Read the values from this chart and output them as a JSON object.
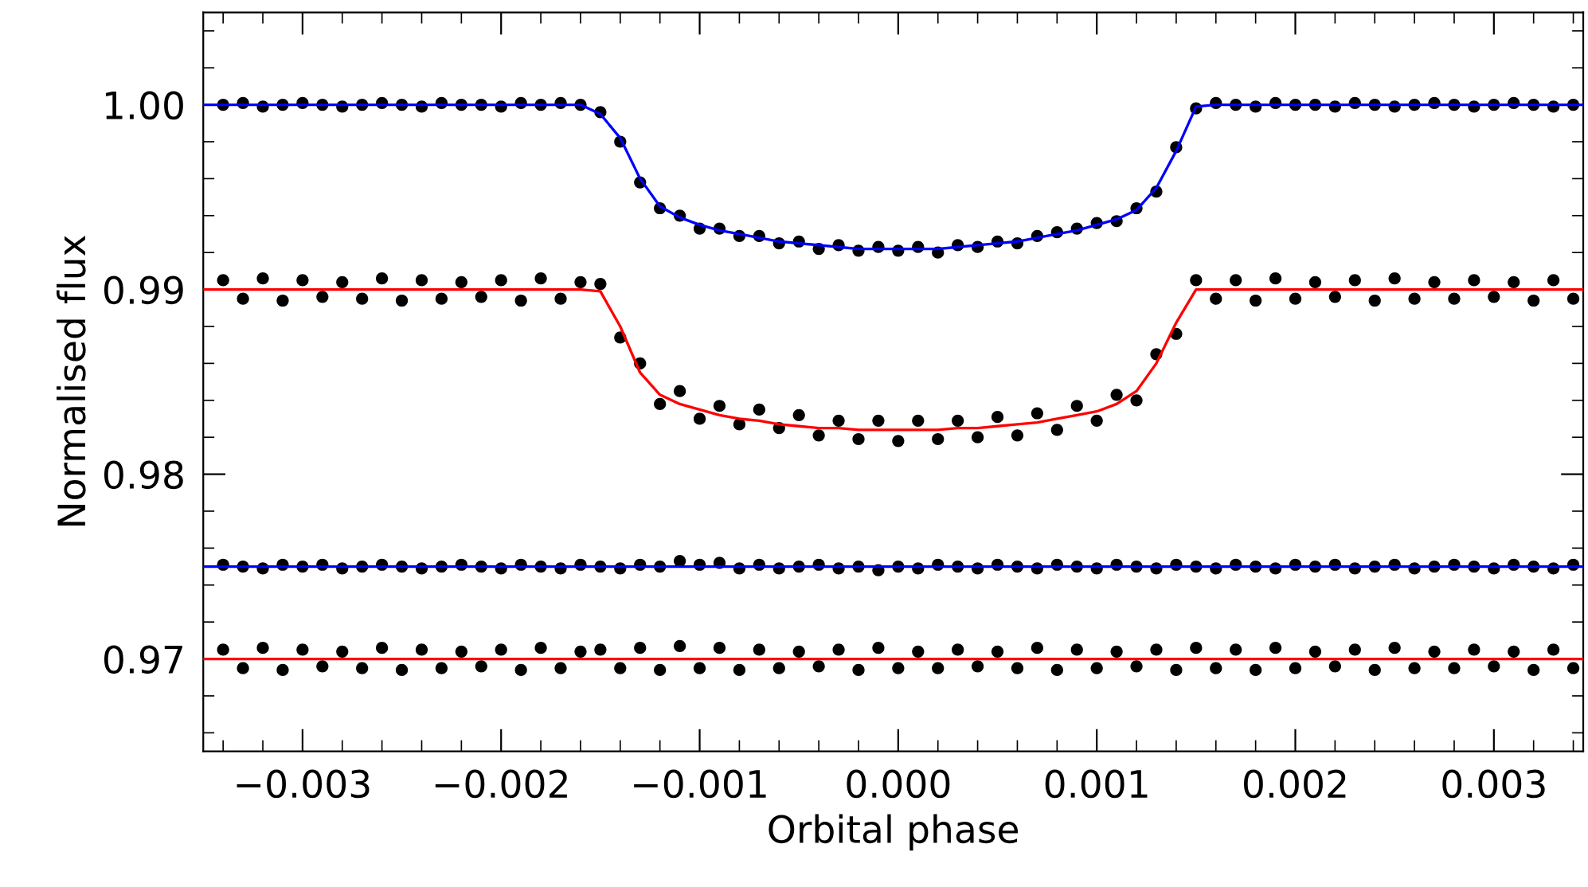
{
  "chart_data": {
    "type": "scatter",
    "xlabel": "Orbital phase",
    "ylabel": "Normalised flux",
    "xlim": [
      -0.0035,
      0.00345
    ],
    "ylim": [
      0.965,
      1.005
    ],
    "xticks": [
      {
        "value": -0.003,
        "label": "−0.003"
      },
      {
        "value": -0.002,
        "label": "−0.002"
      },
      {
        "value": -0.001,
        "label": "−0.001"
      },
      {
        "value": 0.0,
        "label": "0.000"
      },
      {
        "value": 0.001,
        "label": "0.001"
      },
      {
        "value": 0.002,
        "label": "0.002"
      },
      {
        "value": 0.003,
        "label": "0.003"
      }
    ],
    "yticks": [
      {
        "value": 0.97,
        "label": "0.97"
      },
      {
        "value": 0.98,
        "label": "0.98"
      },
      {
        "value": 0.99,
        "label": "0.99"
      },
      {
        "value": 1.0,
        "label": "1.00"
      }
    ],
    "grid": false,
    "legend": false,
    "marker": "circle",
    "x": [
      -0.0034,
      -0.0033,
      -0.0032,
      -0.0031,
      -0.003,
      -0.0029,
      -0.0028,
      -0.0027,
      -0.0026,
      -0.0025,
      -0.0024,
      -0.0023,
      -0.0022,
      -0.0021,
      -0.002,
      -0.0019,
      -0.0018,
      -0.0017,
      -0.0016,
      -0.0015,
      -0.0014,
      -0.0013,
      -0.0012,
      -0.0011,
      -0.001,
      -0.0009,
      -0.0008,
      -0.0007,
      -0.0006,
      -0.0005,
      -0.0004,
      -0.0003,
      -0.0002,
      -0.0001,
      0.0,
      0.0001,
      0.0002,
      0.0003,
      0.0004,
      0.0005,
      0.0006,
      0.0007,
      0.0008,
      0.0009,
      0.001,
      0.0011,
      0.0012,
      0.0013,
      0.0014,
      0.0015,
      0.0016,
      0.0017,
      0.0018,
      0.0019,
      0.002,
      0.0021,
      0.0022,
      0.0023,
      0.0024,
      0.0025,
      0.0026,
      0.0027,
      0.0028,
      0.0029,
      0.003,
      0.0031,
      0.0032,
      0.0033,
      0.0034
    ],
    "series": [
      {
        "color": "#000000",
        "values": [
          1.0,
          1.0001,
          0.9999,
          1.0,
          1.0001,
          1.0,
          0.9999,
          1.0,
          1.0001,
          1.0,
          0.9999,
          1.0001,
          1.0,
          1.0,
          0.9999,
          1.0001,
          1.0,
          1.0001,
          1.0,
          0.9996,
          0.998,
          0.9958,
          0.9944,
          0.994,
          0.9933,
          0.9933,
          0.9929,
          0.9929,
          0.9925,
          0.9926,
          0.9922,
          0.9924,
          0.9921,
          0.9923,
          0.9921,
          0.9923,
          0.992,
          0.9924,
          0.9923,
          0.9926,
          0.9925,
          0.9929,
          0.9931,
          0.9933,
          0.9936,
          0.9937,
          0.9944,
          0.9953,
          0.9977,
          0.9998,
          1.0001,
          1.0,
          0.9999,
          1.0001,
          1.0,
          1.0,
          0.9999,
          1.0001,
          1.0,
          0.9999,
          1.0,
          1.0001,
          1.0,
          0.9999,
          1.0,
          1.0001,
          1.0,
          0.9999,
          1.0
        ]
      },
      {
        "type": "line",
        "marker": "none",
        "color": "#0000ff",
        "x": [
          -0.0035,
          -0.0016,
          -0.0015,
          -0.0014,
          -0.0013,
          -0.0012,
          -0.0011,
          -0.001,
          -0.0009,
          -0.0008,
          -0.0007,
          -0.0006,
          -0.0005,
          -0.0004,
          -0.0003,
          -0.0002,
          -0.0001,
          0.0,
          0.0001,
          0.0002,
          0.0003,
          0.0004,
          0.0005,
          0.0006,
          0.0007,
          0.0008,
          0.0009,
          0.001,
          0.0011,
          0.0012,
          0.0013,
          0.0014,
          0.0015,
          0.0016,
          0.00345
        ],
        "values": [
          1.0,
          1.0,
          0.9995,
          0.9982,
          0.996,
          0.9945,
          0.9939,
          0.9935,
          0.9932,
          0.993,
          0.9928,
          0.9926,
          0.9925,
          0.9924,
          0.9923,
          0.9922,
          0.9922,
          0.9922,
          0.9922,
          0.9922,
          0.9923,
          0.9924,
          0.9925,
          0.9926,
          0.9928,
          0.993,
          0.9932,
          0.9935,
          0.9938,
          0.9943,
          0.9955,
          0.9975,
          0.9999,
          1.0,
          1.0
        ]
      },
      {
        "color": "#000000",
        "values": [
          0.9905,
          0.9895,
          0.9906,
          0.9894,
          0.9905,
          0.9896,
          0.9904,
          0.9895,
          0.9906,
          0.9894,
          0.9905,
          0.9895,
          0.9904,
          0.9896,
          0.9905,
          0.9894,
          0.9906,
          0.9895,
          0.9904,
          0.9903,
          0.9874,
          0.986,
          0.9838,
          0.9845,
          0.983,
          0.9837,
          0.9827,
          0.9835,
          0.9825,
          0.9832,
          0.9821,
          0.9829,
          0.9819,
          0.9829,
          0.9818,
          0.9829,
          0.9819,
          0.9829,
          0.982,
          0.9831,
          0.9821,
          0.9833,
          0.9824,
          0.9837,
          0.9829,
          0.9843,
          0.984,
          0.9865,
          0.9876,
          0.9905,
          0.9895,
          0.9905,
          0.9894,
          0.9906,
          0.9895,
          0.9904,
          0.9896,
          0.9905,
          0.9894,
          0.9906,
          0.9895,
          0.9904,
          0.9895,
          0.9905,
          0.9896,
          0.9904,
          0.9894,
          0.9905,
          0.9895
        ]
      },
      {
        "type": "line",
        "marker": "none",
        "color": "#ff0000",
        "x": [
          -0.0035,
          -0.0016,
          -0.0015,
          -0.0014,
          -0.0013,
          -0.0012,
          -0.0011,
          -0.001,
          -0.0009,
          -0.0008,
          -0.0007,
          -0.0006,
          -0.0005,
          -0.0004,
          -0.0003,
          -0.0002,
          -0.0001,
          0.0,
          0.0001,
          0.0002,
          0.0003,
          0.0004,
          0.0005,
          0.0006,
          0.0007,
          0.0008,
          0.0009,
          0.001,
          0.0011,
          0.0012,
          0.0013,
          0.0014,
          0.0015,
          0.0016,
          0.00345
        ],
        "values": [
          0.99,
          0.99,
          0.9899,
          0.988,
          0.9855,
          0.9843,
          0.9838,
          0.9835,
          0.9832,
          0.983,
          0.9829,
          0.9827,
          0.9826,
          0.9825,
          0.9825,
          0.9824,
          0.9824,
          0.9824,
          0.9824,
          0.9824,
          0.9825,
          0.9825,
          0.9826,
          0.9827,
          0.9828,
          0.983,
          0.9832,
          0.9834,
          0.9838,
          0.9845,
          0.986,
          0.9882,
          0.99,
          0.99,
          0.99
        ]
      },
      {
        "color": "#000000",
        "values": [
          0.9751,
          0.975,
          0.9749,
          0.9751,
          0.975,
          0.9751,
          0.9749,
          0.975,
          0.9751,
          0.975,
          0.9749,
          0.975,
          0.9751,
          0.975,
          0.9749,
          0.9751,
          0.975,
          0.9749,
          0.9751,
          0.975,
          0.9749,
          0.9751,
          0.975,
          0.9753,
          0.9751,
          0.9752,
          0.9749,
          0.9751,
          0.9749,
          0.975,
          0.9751,
          0.9749,
          0.975,
          0.9748,
          0.975,
          0.9749,
          0.9751,
          0.975,
          0.9749,
          0.9751,
          0.975,
          0.9749,
          0.9751,
          0.975,
          0.9749,
          0.9751,
          0.975,
          0.9749,
          0.9751,
          0.975,
          0.9749,
          0.9751,
          0.975,
          0.9749,
          0.9751,
          0.975,
          0.9751,
          0.9749,
          0.975,
          0.9751,
          0.9749,
          0.975,
          0.9751,
          0.975,
          0.9749,
          0.9751,
          0.975,
          0.9749,
          0.9751
        ]
      },
      {
        "type": "line",
        "marker": "none",
        "color": "#0000ff",
        "x": [
          -0.0035,
          0.00345
        ],
        "values": [
          0.975,
          0.975
        ]
      },
      {
        "color": "#000000",
        "values": [
          0.9705,
          0.9695,
          0.9706,
          0.9694,
          0.9705,
          0.9696,
          0.9704,
          0.9695,
          0.9706,
          0.9694,
          0.9705,
          0.9695,
          0.9704,
          0.9696,
          0.9705,
          0.9694,
          0.9706,
          0.9695,
          0.9704,
          0.9705,
          0.9695,
          0.9706,
          0.9694,
          0.9707,
          0.9695,
          0.9706,
          0.9694,
          0.9705,
          0.9695,
          0.9704,
          0.9696,
          0.9705,
          0.9694,
          0.9706,
          0.9695,
          0.9704,
          0.9695,
          0.9705,
          0.9696,
          0.9704,
          0.9695,
          0.9706,
          0.9694,
          0.9705,
          0.9695,
          0.9704,
          0.9696,
          0.9705,
          0.9694,
          0.9706,
          0.9695,
          0.9705,
          0.9694,
          0.9706,
          0.9695,
          0.9704,
          0.9696,
          0.9705,
          0.9694,
          0.9706,
          0.9695,
          0.9704,
          0.9695,
          0.9705,
          0.9696,
          0.9704,
          0.9694,
          0.9705,
          0.9695
        ]
      },
      {
        "type": "line",
        "marker": "none",
        "color": "#ff0000",
        "x": [
          -0.0035,
          0.00345
        ],
        "values": [
          0.97,
          0.97
        ]
      }
    ]
  }
}
